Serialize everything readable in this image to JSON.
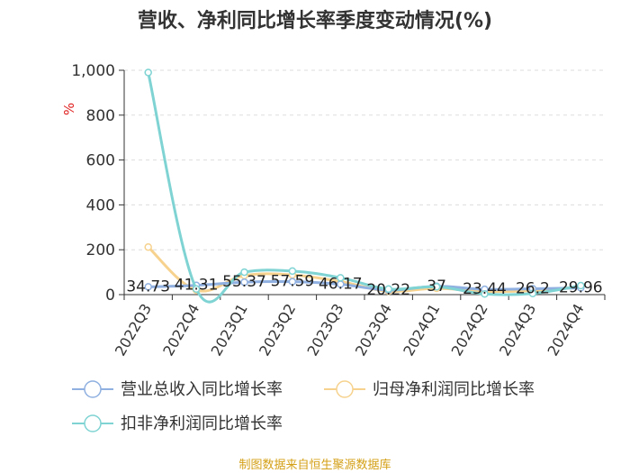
{
  "chart_data": {
    "type": "line",
    "title": "营收、净利同比增长率季度变动情况(%)",
    "unit_label": "%",
    "categories": [
      "2022Q3",
      "2022Q4",
      "2023Q1",
      "2023Q2",
      "2023Q3",
      "2023Q4",
      "2024Q1",
      "2024Q2",
      "2024Q3",
      "2024Q4"
    ],
    "ylim": [
      0,
      1000
    ],
    "yticks": [
      0,
      200,
      400,
      600,
      800,
      1000
    ],
    "ytick_labels": [
      "0",
      "200",
      "400",
      "600",
      "800",
      "1,000"
    ],
    "grid": true,
    "legend_position": "bottom",
    "series": [
      {
        "name": "营业总收入同比增长率",
        "color": "#8fb0e0",
        "values": [
          34.73,
          41.31,
          55.37,
          57.59,
          46.17,
          20.22,
          37,
          23.44,
          26.2,
          29.96
        ],
        "labels": [
          "34.73",
          "41.31",
          "55.37",
          "57.59",
          "46.17",
          "20.22",
          "37",
          "23.44",
          "26.2",
          "29.96"
        ]
      },
      {
        "name": "归母净利润同比增长率",
        "color": "#f6d28e",
        "values": [
          212,
          20,
          85,
          88,
          58,
          15,
          28,
          14,
          18,
          35
        ]
      },
      {
        "name": "扣非净利润同比增长率",
        "color": "#7fd3d3",
        "values": [
          990,
          25,
          100,
          105,
          75,
          25,
          35,
          3,
          5,
          40
        ]
      }
    ]
  },
  "source": "制图数据来自恒生聚源数据库"
}
